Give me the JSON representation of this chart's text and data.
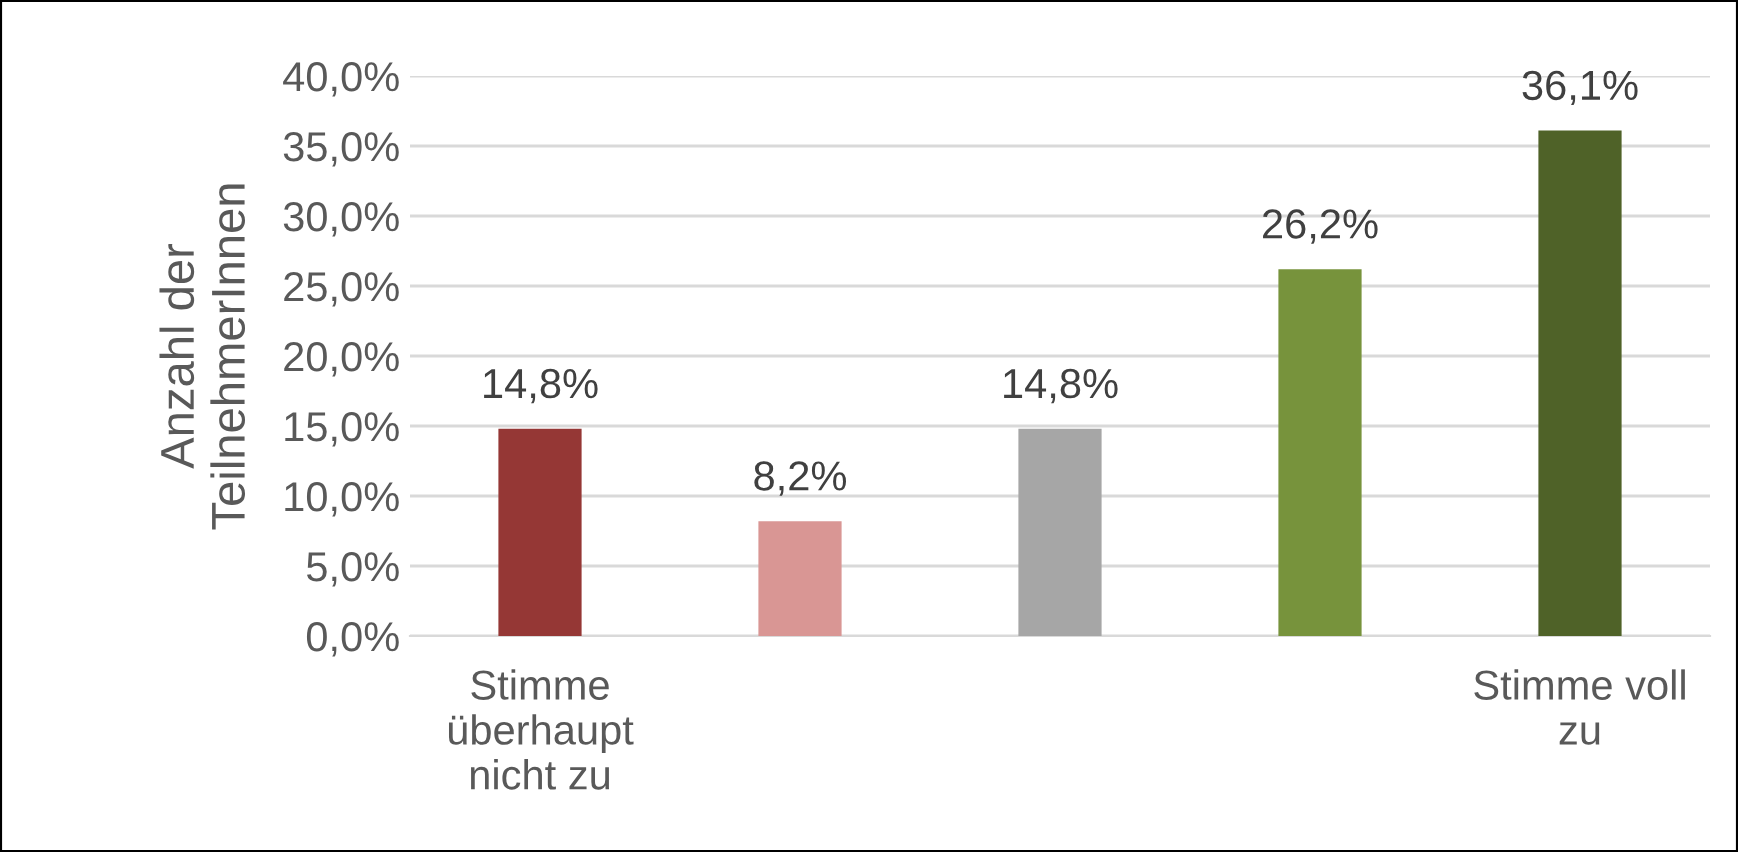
{
  "chart_data": {
    "type": "bar",
    "ylabel": "Anzahl der\nTeilnehmerInnen",
    "categories": [
      "Stimme\nüberhaupt\nnicht zu",
      null,
      null,
      null,
      "Stimme voll\nzu"
    ],
    "values": [
      14.8,
      8.2,
      14.8,
      26.2,
      36.1
    ],
    "colors": [
      "#953735",
      "#d99694",
      "#a6a6a6",
      "#77933c",
      "#4f6228"
    ],
    "value_labels": [
      "14,8%",
      "8,2%",
      "14,8%",
      "26,2%",
      "36,1%"
    ],
    "ylim": [
      0,
      40
    ],
    "yticks": [
      {
        "value": 0,
        "label": "0,0%"
      },
      {
        "value": 5,
        "label": "5,0%"
      },
      {
        "value": 10,
        "label": "10,0%"
      },
      {
        "value": 15,
        "label": "15,0%"
      },
      {
        "value": 20,
        "label": "20,0%"
      },
      {
        "value": 25,
        "label": "25,0%"
      },
      {
        "value": 30,
        "label": "30,0%"
      },
      {
        "value": 35,
        "label": "35,0%"
      },
      {
        "value": 40,
        "label": "40,0%"
      }
    ],
    "grid": "y",
    "legend": false
  }
}
